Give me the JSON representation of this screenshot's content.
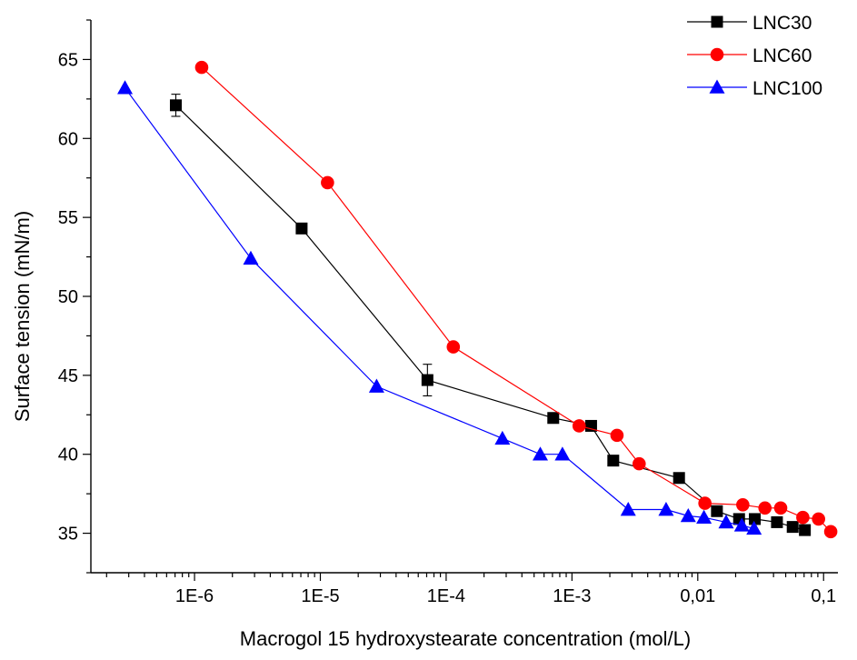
{
  "chart_data": {
    "type": "scatter",
    "xlabel": "Macrogol 15 hydroxystearate concentration (mol/L)",
    "ylabel": "Surface tension (mN/m)",
    "x_scale": "log",
    "xlim": [
      1.5e-07,
      0.13
    ],
    "ylim": [
      32.5,
      67.5
    ],
    "x_ticks": [
      {
        "value": 1e-06,
        "label": "1E-6"
      },
      {
        "value": 1e-05,
        "label": "1E-5"
      },
      {
        "value": 0.0001,
        "label": "1E-4"
      },
      {
        "value": 0.001,
        "label": "1E-3"
      },
      {
        "value": 0.01,
        "label": "0,01"
      },
      {
        "value": 0.1,
        "label": "0,1"
      }
    ],
    "y_ticks": [
      {
        "value": 35,
        "label": "35"
      },
      {
        "value": 40,
        "label": "40"
      },
      {
        "value": 45,
        "label": "45"
      },
      {
        "value": 50,
        "label": "50"
      },
      {
        "value": 55,
        "label": "55"
      },
      {
        "value": 60,
        "label": "60"
      },
      {
        "value": 65,
        "label": "65"
      }
    ],
    "legend_position": "top-right",
    "grid": false,
    "series": [
      {
        "name": "LNC30",
        "color": "#000000",
        "marker": "square",
        "points": [
          {
            "x": 7.1e-07,
            "y": 62.1,
            "err": 0.7
          },
          {
            "x": 7.1e-06,
            "y": 54.3
          },
          {
            "x": 7.1e-05,
            "y": 44.7,
            "err": 1.0
          },
          {
            "x": 0.00071,
            "y": 42.3
          },
          {
            "x": 0.00142,
            "y": 41.8
          },
          {
            "x": 0.00213,
            "y": 39.6
          },
          {
            "x": 0.0071,
            "y": 38.5
          },
          {
            "x": 0.0142,
            "y": 36.4
          },
          {
            "x": 0.0213,
            "y": 35.9
          },
          {
            "x": 0.0284,
            "y": 35.9
          },
          {
            "x": 0.0426,
            "y": 35.7
          },
          {
            "x": 0.0568,
            "y": 35.4
          },
          {
            "x": 0.071,
            "y": 35.2
          }
        ]
      },
      {
        "name": "LNC60",
        "color": "#ff0000",
        "marker": "circle",
        "points": [
          {
            "x": 1.14e-06,
            "y": 64.5
          },
          {
            "x": 1.14e-05,
            "y": 57.2
          },
          {
            "x": 0.000114,
            "y": 46.8
          },
          {
            "x": 0.00114,
            "y": 41.8
          },
          {
            "x": 0.00228,
            "y": 41.2
          },
          {
            "x": 0.00342,
            "y": 39.4
          },
          {
            "x": 0.0114,
            "y": 36.9
          },
          {
            "x": 0.0228,
            "y": 36.8
          },
          {
            "x": 0.0342,
            "y": 36.6
          },
          {
            "x": 0.0456,
            "y": 36.6
          },
          {
            "x": 0.0684,
            "y": 36.0
          },
          {
            "x": 0.0912,
            "y": 35.9
          },
          {
            "x": 0.114,
            "y": 35.1
          }
        ]
      },
      {
        "name": "LNC100",
        "color": "#0000ff",
        "marker": "triangle",
        "points": [
          {
            "x": 2.8e-07,
            "y": 63.2
          },
          {
            "x": 2.8e-06,
            "y": 52.4
          },
          {
            "x": 2.8e-05,
            "y": 44.3
          },
          {
            "x": 0.00028,
            "y": 41.0
          },
          {
            "x": 0.00056,
            "y": 40.0
          },
          {
            "x": 0.00084,
            "y": 40.0
          },
          {
            "x": 0.0028,
            "y": 36.5
          },
          {
            "x": 0.0056,
            "y": 36.5
          },
          {
            "x": 0.0084,
            "y": 36.1
          },
          {
            "x": 0.0112,
            "y": 36.0
          },
          {
            "x": 0.0168,
            "y": 35.7
          },
          {
            "x": 0.0224,
            "y": 35.5
          },
          {
            "x": 0.028,
            "y": 35.3
          }
        ]
      }
    ]
  }
}
